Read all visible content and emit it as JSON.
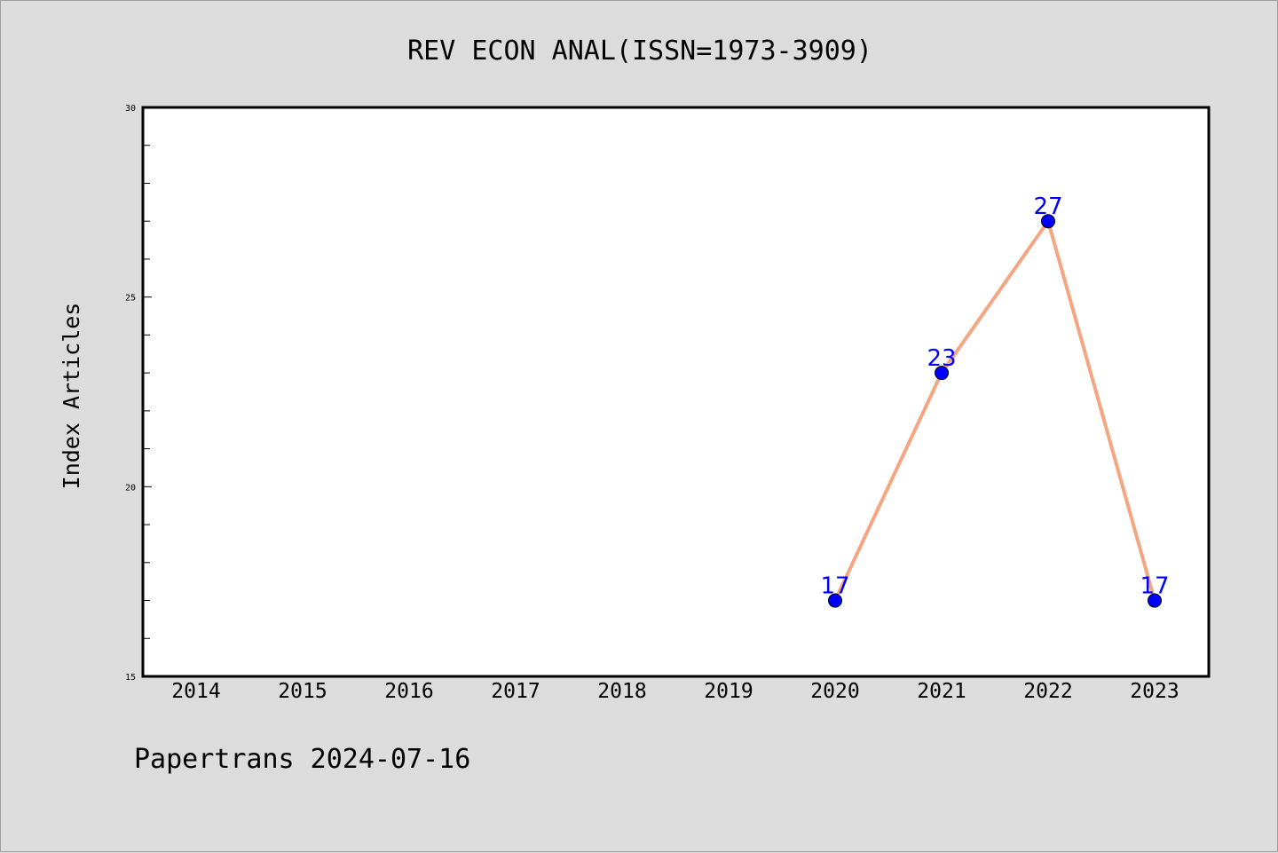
{
  "chart_data": {
    "type": "line",
    "title": "REV ECON ANAL(ISSN=1973-3909)",
    "xlabel": "",
    "ylabel": "Index Articles",
    "categories": [
      "2014",
      "2015",
      "2016",
      "2017",
      "2018",
      "2019",
      "2020",
      "2021",
      "2022",
      "2023"
    ],
    "series": [
      {
        "x": [
          "2020",
          "2021",
          "2022",
          "2023"
        ],
        "values": [
          17,
          23,
          27,
          17
        ],
        "point_labels": [
          "17",
          "23",
          "27",
          "17"
        ],
        "line_color": "#f4a582",
        "marker_color": "#0000ff"
      }
    ],
    "ylim": [
      15,
      30
    ],
    "y_ticks": [
      "15",
      "20",
      "25",
      "30"
    ],
    "y_minor_step": 1,
    "grid": false,
    "legend": "none"
  },
  "footer": "Papertrans 2024-07-16",
  "colors": {
    "background": "#dcdcdc",
    "plot_background": "#ffffff",
    "axes": "#000000",
    "line": "#f4a582",
    "marker": "#0000ff",
    "label": "#0000ff"
  }
}
